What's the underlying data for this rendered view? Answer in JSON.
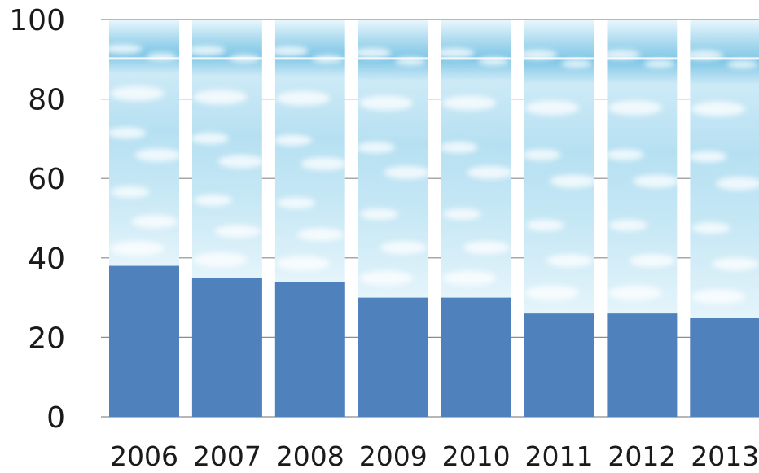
{
  "chart_data": {
    "type": "bar",
    "stacked": true,
    "categories": [
      "2006",
      "2007",
      "2008",
      "2009",
      "2010",
      "2011",
      "2012",
      "2013"
    ],
    "series": [
      {
        "values": [
          38,
          35,
          34,
          30,
          30,
          26,
          26,
          25
        ],
        "color": "#4f81bd"
      },
      {
        "values": [
          62,
          65,
          66,
          70,
          70,
          74,
          74,
          75
        ],
        "color": "#a9d8ee",
        "fill_style": "sky-clouds"
      }
    ],
    "yticks": [
      0,
      20,
      40,
      60,
      80,
      100
    ],
    "ylim": [
      0,
      100
    ],
    "grid": true,
    "legend": "none"
  }
}
